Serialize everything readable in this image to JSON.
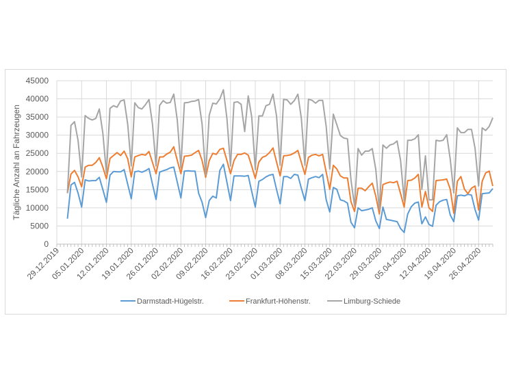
{
  "chart_data": {
    "type": "line",
    "title": "",
    "xlabel": "",
    "ylabel": "Tägliche Anzahl an Fahrzeugen",
    "ylim": [
      0,
      45000
    ],
    "yticks": [
      0,
      5000,
      10000,
      15000,
      20000,
      25000,
      30000,
      35000,
      40000,
      45000
    ],
    "x": {
      "start": "01.01.2020",
      "end": "30.04.2020",
      "frequency": "daily"
    },
    "xtick_labels": [
      "29.12.2019",
      "05.01.2020",
      "12.01.2020",
      "19.01.2020",
      "26.01.2020",
      "02.02.2020",
      "09.02.2020",
      "16.02.2020",
      "23.02.2020",
      "01.03.2020",
      "08.03.2020",
      "15.03.2020",
      "22.03.2020",
      "29.03.2020",
      "05.04.2020",
      "12.04.2020",
      "19.04.2020",
      "26.04.2020"
    ],
    "grid": true,
    "legend_position": "bottom",
    "series": [
      {
        "name": "Darmstadt-Hügelstr.",
        "color": "#5b9bd5",
        "values": [
          7000,
          16300,
          17000,
          14000,
          10200,
          17700,
          17400,
          17500,
          17500,
          18400,
          15000,
          11500,
          19000,
          20000,
          19900,
          19900,
          20500,
          16500,
          12500,
          19900,
          20100,
          19800,
          20200,
          20800,
          16500,
          12300,
          19800,
          20200,
          20500,
          21000,
          21200,
          17000,
          12700,
          20100,
          20200,
          20100,
          20100,
          14000,
          11500,
          7300,
          12000,
          13200,
          12700,
          20300,
          22000,
          17000,
          12000,
          18800,
          18800,
          18800,
          18700,
          18900,
          14500,
          10200,
          17300,
          17800,
          18500,
          19000,
          19200,
          15000,
          11100,
          18600,
          18600,
          18100,
          19200,
          19000,
          15400,
          12000,
          17900,
          18300,
          18600,
          18300,
          19200,
          12200,
          8850,
          15600,
          15100,
          12200,
          11900,
          11300,
          6000,
          4500,
          10000,
          9200,
          9400,
          9600,
          10000,
          6400,
          4300,
          10200,
          6800,
          6600,
          6400,
          6200,
          4300,
          3200,
          8300,
          10300,
          11300,
          11600,
          5600,
          7500,
          5400,
          4900,
          10700,
          11700,
          12100,
          12300,
          8000,
          6200,
          13300,
          13500,
          13300,
          13700,
          13500,
          9500,
          6600,
          13900,
          14000,
          14100,
          15300
        ]
      },
      {
        "name": "Frankfurt-Höhenstr.",
        "color": "#ed7d31",
        "values": [
          14000,
          19300,
          20300,
          18500,
          15800,
          21200,
          21700,
          21700,
          22500,
          23800,
          21200,
          18000,
          23600,
          24400,
          25200,
          24400,
          25600,
          23500,
          18500,
          24000,
          24400,
          24700,
          24500,
          25500,
          22500,
          19400,
          24000,
          24000,
          24800,
          25300,
          26800,
          23000,
          19400,
          24200,
          24300,
          24500,
          25200,
          25800,
          23000,
          18400,
          23000,
          25000,
          24700,
          26100,
          26400,
          23000,
          19400,
          23000,
          24700,
          24700,
          25100,
          24500,
          21500,
          18100,
          22600,
          23900,
          24300,
          25200,
          26500,
          22600,
          18800,
          24300,
          24400,
          24600,
          25100,
          25800,
          22500,
          19200,
          23900,
          24500,
          24700,
          24300,
          24700,
          19800,
          15100,
          21700,
          20700,
          18800,
          18200,
          18200,
          11700,
          9000,
          15400,
          15400,
          14700,
          15800,
          16800,
          13200,
          8300,
          16400,
          16800,
          17100,
          16900,
          17300,
          13900,
          10200,
          17500,
          17600,
          18200,
          19200,
          10200,
          14500,
          10000,
          9000,
          17500,
          17600,
          17700,
          17900,
          15100,
          8500,
          17300,
          18600,
          15100,
          13900,
          15400,
          16000,
          9400,
          17300,
          19600,
          20100,
          16000
        ]
      },
      {
        "name": "Limburg-Schiede",
        "color": "#a5a5a5",
        "values": [
          14000,
          32700,
          33700,
          28500,
          18500,
          35400,
          34600,
          34200,
          34600,
          37200,
          30500,
          19500,
          37400,
          38100,
          37700,
          39400,
          39700,
          33000,
          21500,
          38900,
          37600,
          37200,
          38400,
          39800,
          33000,
          21500,
          38200,
          39500,
          38800,
          39000,
          41300,
          34000,
          21000,
          38900,
          39000,
          39300,
          39400,
          39800,
          33000,
          19000,
          35500,
          38800,
          38600,
          40000,
          42500,
          34500,
          21500,
          39000,
          39200,
          38500,
          31000,
          40800,
          35000,
          20500,
          35300,
          35300,
          38100,
          38500,
          41300,
          35200,
          21700,
          39900,
          39700,
          38500,
          39500,
          41300,
          34600,
          21700,
          39900,
          39600,
          38800,
          39600,
          39600,
          32400,
          20700,
          35800,
          32900,
          29900,
          29200,
          29000,
          17700,
          10500,
          26300,
          24500,
          25600,
          25600,
          26300,
          20500,
          9400,
          27300,
          26400,
          27300,
          27600,
          28400,
          23000,
          12000,
          28600,
          28600,
          29000,
          30100,
          15100,
          24300,
          12200,
          12200,
          28600,
          28400,
          28600,
          30100,
          23300,
          14100,
          32000,
          30700,
          30700,
          31600,
          31600,
          26400,
          16000,
          32000,
          31300,
          32400,
          34800
        ]
      }
    ]
  }
}
